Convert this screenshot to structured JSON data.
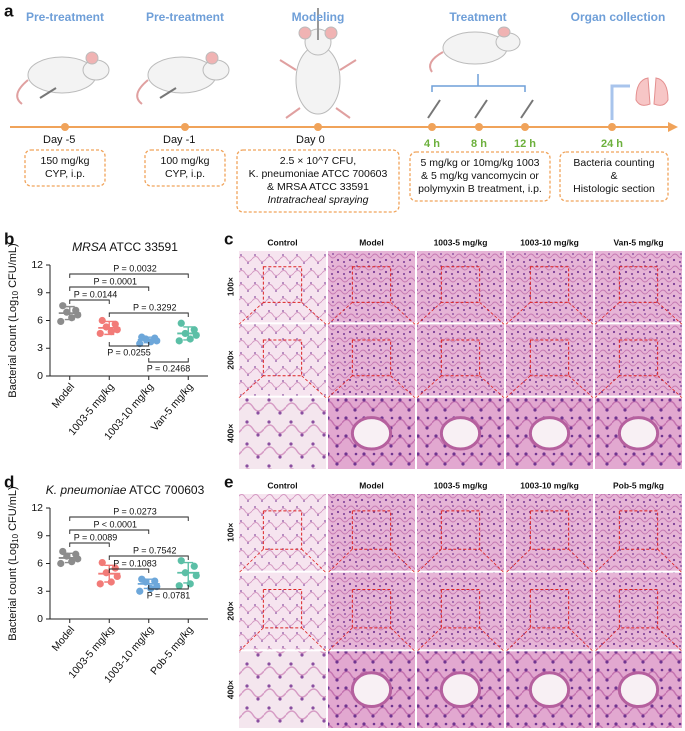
{
  "timeline": {
    "label": "a",
    "stages": [
      "Pre-treatment",
      "Pre-treatment",
      "Modeling",
      "Treatment",
      "Organ collection"
    ],
    "points": [
      "Day -5",
      "Day -1",
      "Day 0",
      "4 h",
      "8 h",
      "12 h",
      "24 h"
    ],
    "boxes": [
      [
        "150 mg/kg",
        "CYP, i.p."
      ],
      [
        "100 mg/kg",
        "CYP, i.p."
      ],
      [
        "2.5 × 10^7 CFU,",
        "K. pneumoniae ATCC 700603",
        "& MRSA ATCC 33591",
        "Intratracheal spraying"
      ],
      [
        "5 mg/kg or 10mg/kg 1003",
        "& 5 mg/kg vancomycin or",
        "polymyxin B treatment, i.p."
      ],
      [
        "Bacteria counting",
        "&",
        "Histologic section"
      ]
    ]
  },
  "chart_data": [
    {
      "label": "b",
      "type": "dot",
      "title": [
        "MRSA",
        " ATCC 33591"
      ],
      "ylabel": [
        "Bacterial count (Log",
        "10",
        " CFU/mL)"
      ],
      "categories": [
        "Model",
        "1003-5 mg/kg",
        "1003-10 mg/kg",
        "Van-5 mg/kg"
      ],
      "colors": [
        "#8c8c8c",
        "#f27b78",
        "#6da7da",
        "#5bbfa6"
      ],
      "points": [
        [
          7.6,
          7.1,
          6.9,
          6.6,
          6.3,
          5.9
        ],
        [
          6.0,
          5.6,
          5.3,
          5.0,
          4.8,
          4.6
        ],
        [
          4.2,
          4.1,
          4.0,
          3.8,
          3.7,
          3.5
        ],
        [
          5.7,
          5.0,
          4.6,
          4.4,
          4.0,
          3.8
        ]
      ],
      "means": [
        6.8,
        5.2,
        3.9,
        4.6
      ],
      "sds": [
        0.7,
        0.7,
        0.3,
        0.7
      ],
      "ylim": [
        0,
        12
      ],
      "yticks": [
        0,
        3,
        6,
        9,
        12
      ],
      "comparisons": [
        {
          "label": "P = 0.0032",
          "between": [
            0,
            3
          ],
          "side": "top"
        },
        {
          "label": "P = 0.0001",
          "between": [
            0,
            2
          ],
          "side": "top"
        },
        {
          "label": "P = 0.0144",
          "between": [
            0,
            1
          ],
          "side": "top"
        },
        {
          "label": "P = 0.3292",
          "between": [
            1,
            3
          ],
          "side": "top"
        },
        {
          "label": "P = 0.0255",
          "between": [
            1,
            2
          ],
          "side": "bottom"
        },
        {
          "label": "P = 0.2468",
          "between": [
            2,
            3
          ],
          "side": "bottom"
        }
      ]
    },
    {
      "label": "d",
      "type": "dot",
      "title": [
        "K. pneumoniae",
        " ATCC 700603"
      ],
      "ylabel": [
        "Bacterial count (Log",
        "10",
        " CFU/mL)"
      ],
      "categories": [
        "Model",
        "1003-5 mg/kg",
        "1003-10 mg/kg",
        "Pob-5 mg/kg"
      ],
      "colors": [
        "#8c8c8c",
        "#f27b78",
        "#6da7da",
        "#5bbfa6"
      ],
      "points": [
        [
          7.3,
          7.0,
          6.8,
          6.5,
          6.2,
          6.0
        ],
        [
          6.1,
          5.5,
          5.0,
          4.6,
          4.0,
          3.8
        ],
        [
          4.3,
          4.1,
          4.0,
          3.5,
          3.3,
          3.0
        ],
        [
          6.3,
          5.7,
          5.0,
          4.7,
          3.8,
          3.6
        ]
      ],
      "means": [
        6.6,
        4.9,
        3.8,
        5.0
      ],
      "sds": [
        0.5,
        0.9,
        0.5,
        1.1
      ],
      "ylim": [
        0,
        12
      ],
      "yticks": [
        0,
        3,
        6,
        9,
        12
      ],
      "comparisons": [
        {
          "label": "P = 0.0273",
          "between": [
            0,
            3
          ],
          "side": "top"
        },
        {
          "label": "P < 0.0001",
          "between": [
            0,
            2
          ],
          "side": "top"
        },
        {
          "label": "P = 0.0089",
          "between": [
            0,
            1
          ],
          "side": "top"
        },
        {
          "label": "P = 0.7542",
          "between": [
            1,
            3
          ],
          "side": "top"
        },
        {
          "label": "P = 0.1083",
          "between": [
            1,
            2
          ],
          "side": "top"
        },
        {
          "label": "P = 0.0781",
          "between": [
            2,
            3
          ],
          "side": "bottom"
        }
      ]
    }
  ],
  "histology": [
    {
      "label": "c",
      "columns": [
        "Control",
        "Model",
        "1003-5 mg/kg",
        "1003-10 mg/kg",
        "Van-5 mg/kg"
      ],
      "rows": [
        "100×",
        "200×",
        "400×"
      ]
    },
    {
      "label": "e",
      "columns": [
        "Control",
        "Model",
        "1003-5 mg/kg",
        "1003-10 mg/kg",
        "Pob-5 mg/kg"
      ],
      "rows": [
        "100×",
        "200×",
        "400×"
      ]
    }
  ]
}
